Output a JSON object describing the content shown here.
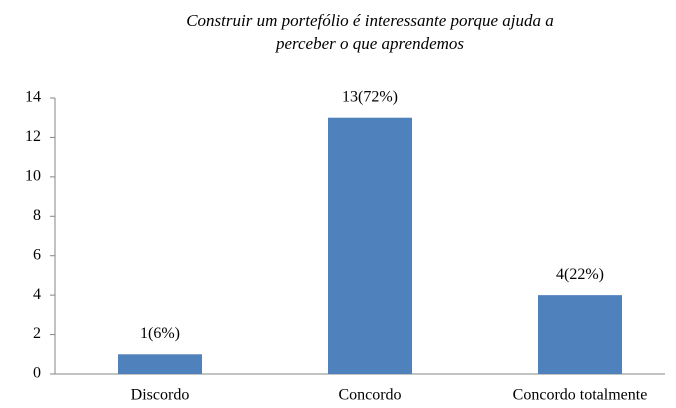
{
  "chart_data": {
    "type": "bar",
    "title": [
      "Construir um portefólio é interessante porque ajuda a",
      "perceber o que aprendemos"
    ],
    "categories": [
      "Discordo",
      "Concordo",
      "Concordo totalmente"
    ],
    "values": [
      1,
      13,
      4
    ],
    "value_labels": [
      "1(6%)",
      "13(72%)",
      "4(22%)"
    ],
    "color": "#4f81bd",
    "ylim": [
      0,
      14
    ],
    "yticks": [
      0,
      2,
      4,
      6,
      8,
      10,
      12,
      14
    ],
    "grid": false
  }
}
